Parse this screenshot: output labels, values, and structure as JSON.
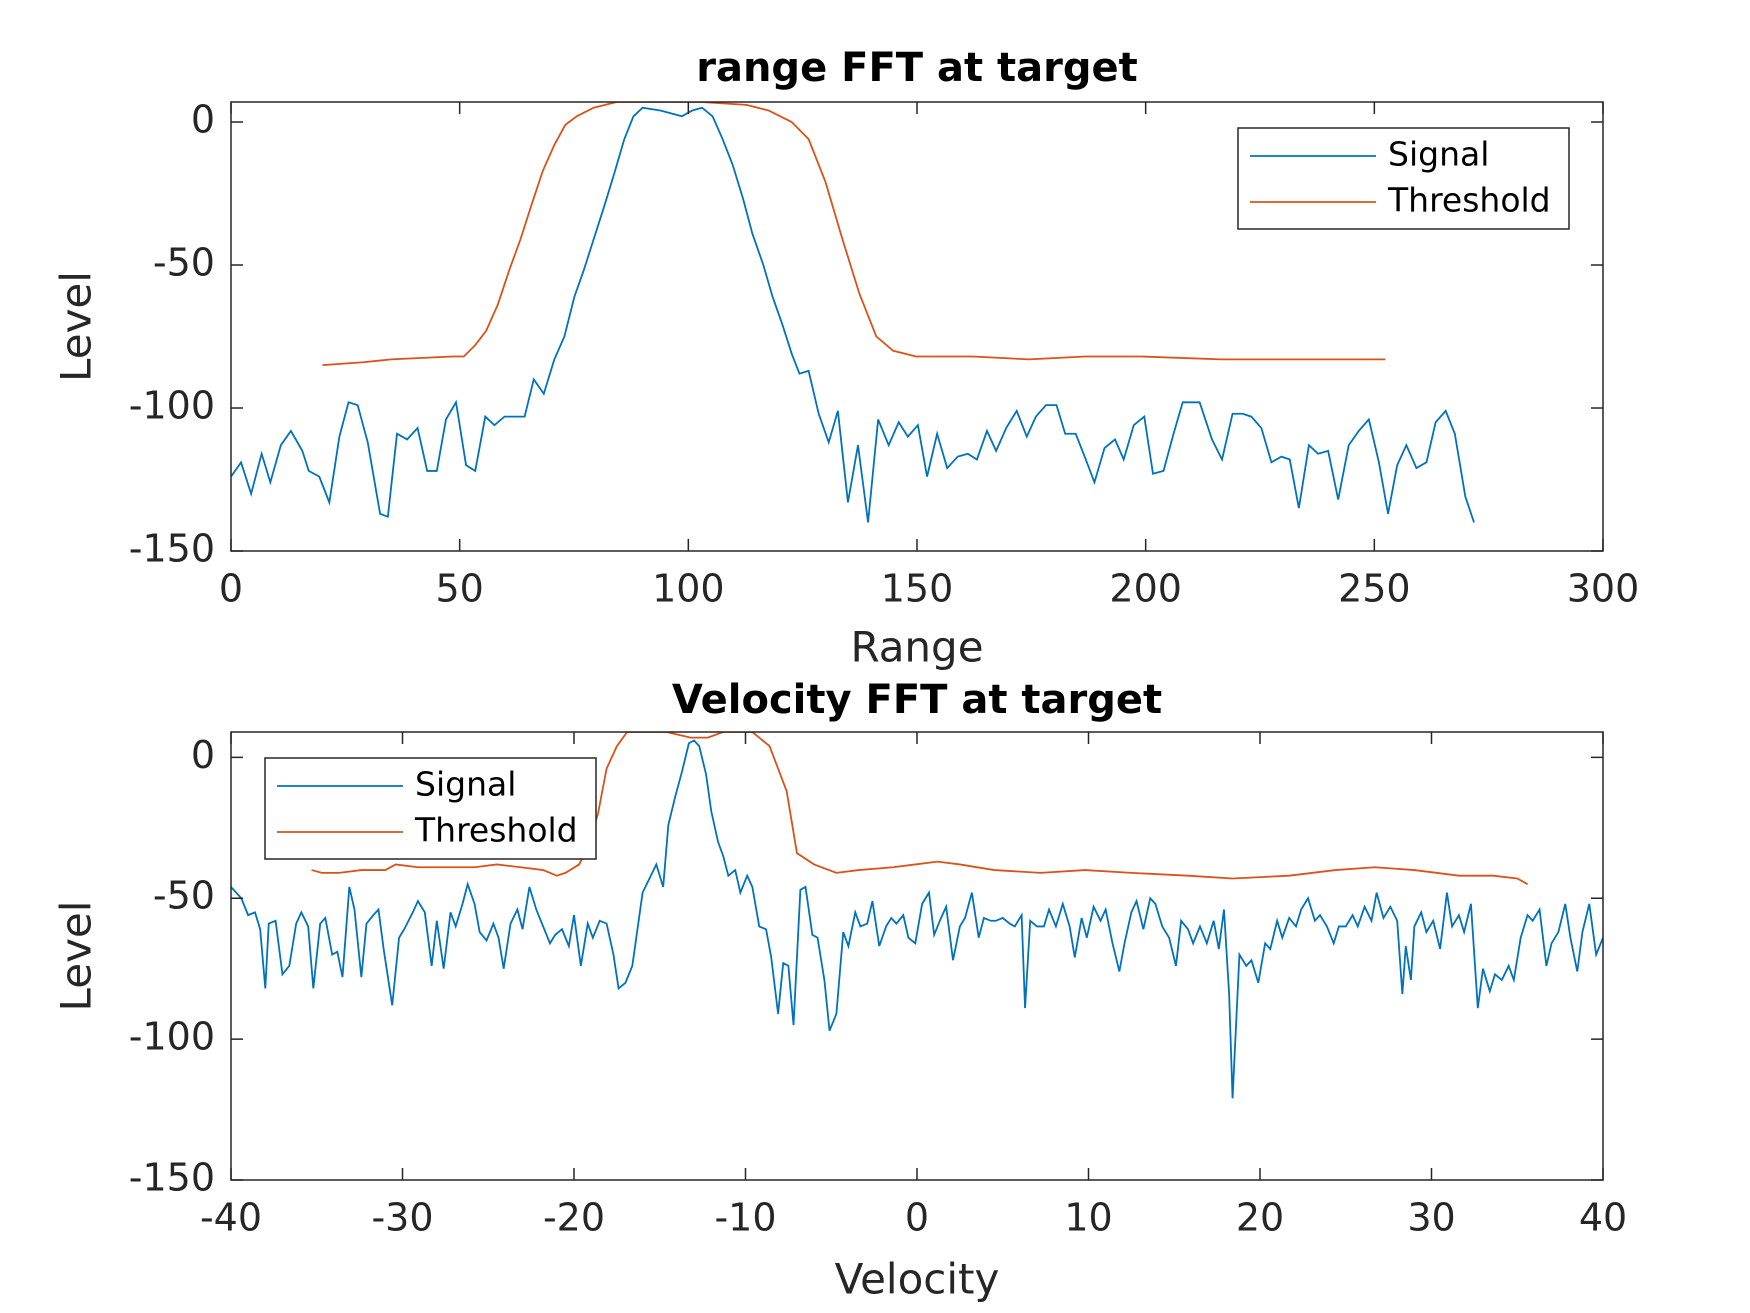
{
  "chart_data": [
    {
      "type": "line",
      "title": "range FFT at target",
      "xlabel": "Range",
      "ylabel": "Level",
      "xlim": [
        0,
        300
      ],
      "ylim": [
        -150,
        7
      ],
      "xticks": [
        0,
        50,
        100,
        150,
        200,
        250,
        300
      ],
      "yticks": [
        -150,
        -100,
        -50,
        0
      ],
      "legend": "top-right",
      "grid": false,
      "series": [
        {
          "name": "Signal",
          "color": "#0072BD",
          "x": [
            0,
            2.2,
            4.4,
            6.7,
            8.6,
            10.9,
            13.1,
            15.6,
            17,
            19.3,
            21.5,
            23.7,
            25.7,
            27.7,
            29.9,
            32.6,
            34.3,
            36.3,
            38.5,
            40.8,
            42.9,
            45,
            47,
            49.2,
            51.4,
            53.4,
            55.6,
            57.6,
            59.8,
            64.2,
            66.2,
            68.4,
            70.7,
            72.9,
            75.1,
            77.1,
            79.3,
            81.5,
            83.8,
            86,
            88,
            90,
            94,
            98.6,
            100.8,
            103,
            105.3,
            107.5,
            109.7,
            112,
            114,
            116.4,
            118.4,
            120.6,
            122.6,
            124.3,
            126.3,
            128.5,
            130.7,
            132.7,
            134.9,
            137.1,
            139.3,
            141.5,
            143.8,
            146,
            148,
            150.2,
            152.2,
            154.4,
            156.6,
            158.9,
            161.1,
            163.1,
            165.3,
            167.3,
            169.5,
            171.8,
            174,
            176,
            178.2,
            180.5,
            182.4,
            184.7,
            186.9,
            188.8,
            191,
            193.3,
            195.2,
            197.4,
            199.7,
            201.6,
            203.9,
            206.1,
            208.1,
            211.8,
            214.5,
            216.7,
            219,
            221.2,
            223.1,
            225.3,
            227.5,
            229.7,
            231.5,
            233.5,
            235.7,
            237.7,
            239.9,
            242.1,
            244.4,
            246.6,
            248.8,
            251,
            253,
            255,
            257,
            259.2,
            261.4,
            263.4,
            265.6,
            267.6,
            269.9,
            271.8
          ],
          "values": [
            -124,
            -119,
            -130,
            -116,
            -126,
            -113,
            -108,
            -115,
            -122,
            -124,
            -133,
            -110,
            -98,
            -99,
            -112,
            -137,
            -138,
            -109,
            -111,
            -107,
            -122,
            -122,
            -104,
            -98,
            -120,
            -122,
            -103,
            -106,
            -103,
            -103,
            -90,
            -95,
            -83,
            -75,
            -61,
            -52,
            -41,
            -30,
            -18,
            -6,
            2,
            5,
            4,
            2,
            4,
            5,
            2,
            -6,
            -15,
            -27,
            -39,
            -50,
            -61,
            -71,
            -81,
            -88,
            -87,
            -102,
            -112,
            -101,
            -133,
            -113,
            -140,
            -104,
            -113,
            -105,
            -110,
            -106,
            -124,
            -109,
            -121,
            -117,
            -116,
            -118,
            -108,
            -115,
            -107,
            -101,
            -110,
            -103,
            -99,
            -99,
            -109,
            -109,
            -118,
            -126,
            -114,
            -111,
            -118,
            -106,
            -103,
            -123,
            -122,
            -109,
            -98,
            -98,
            -111,
            -118,
            -102,
            -102,
            -103,
            -107,
            -119,
            -117,
            -118,
            -135,
            -113,
            -116,
            -115,
            -132,
            -113,
            -108,
            -104,
            -119,
            -137,
            -120,
            -113,
            -121,
            -119,
            -105,
            -101,
            -109,
            -131,
            -140
          ]
        },
        {
          "name": "Threshold",
          "color": "#D95319",
          "x": [
            20,
            28.9,
            35,
            48.4,
            50.9,
            53.4,
            55.8,
            58.3,
            60.8,
            63.3,
            65.7,
            68.2,
            70.7,
            73.1,
            75.6,
            79.3,
            84.3,
            93,
            102.8,
            112.7,
            117.6,
            122.6,
            126.3,
            130,
            133.7,
            137.4,
            141.1,
            144.8,
            149.8,
            162.2,
            174.5,
            186.8,
            193,
            199.3,
            216.5,
            236.3,
            252.4
          ],
          "values": [
            -85,
            -84,
            -83,
            -82,
            -82,
            -78,
            -73,
            -64,
            -52,
            -41,
            -29,
            -17,
            -8,
            -1,
            2,
            5,
            7,
            7,
            7,
            6,
            4,
            0,
            -6,
            -21,
            -41,
            -60,
            -75,
            -80,
            -82,
            -82,
            -83,
            -82,
            -82,
            -82,
            -83,
            -83,
            -83
          ]
        }
      ]
    },
    {
      "type": "line",
      "title": "Velocity FFT at target",
      "xlabel": "Velocity",
      "ylabel": "Level",
      "xlim": [
        -40,
        40
      ],
      "ylim": [
        -150,
        9
      ],
      "xticks": [
        -40,
        -30,
        -20,
        -10,
        0,
        10,
        20,
        30,
        40
      ],
      "yticks": [
        -150,
        -100,
        -50,
        0
      ],
      "legend": "top-left",
      "grid": false,
      "series": [
        {
          "name": "Signal",
          "color": "#0072BD",
          "x": [
            -40,
            -39.4,
            -39,
            -38.6,
            -38.3,
            -38,
            -37.8,
            -37.4,
            -37,
            -36.6,
            -36.2,
            -35.9,
            -35.5,
            -35.2,
            -34.8,
            -34.5,
            -34.1,
            -33.8,
            -33.5,
            -33.1,
            -32.8,
            -32.4,
            -32.1,
            -31.7,
            -31.4,
            -31.1,
            -30.6,
            -30.2,
            -29.9,
            -29.4,
            -29.1,
            -28.7,
            -28.3,
            -28,
            -27.6,
            -27.2,
            -26.9,
            -26.5,
            -26.2,
            -25.8,
            -25.5,
            -25.1,
            -24.7,
            -24.4,
            -24.1,
            -23.7,
            -23.3,
            -23,
            -22.6,
            -22.2,
            -21.8,
            -21.4,
            -21.1,
            -20.7,
            -20.3,
            -20,
            -19.6,
            -19.2,
            -18.9,
            -18.5,
            -18.1,
            -17.7,
            -17.4,
            -17,
            -16.6,
            -16.3,
            -16,
            -15.6,
            -15.2,
            -14.8,
            -14.5,
            -14.1,
            -13.7,
            -13.3,
            -13,
            -12.7,
            -12.3,
            -12,
            -11.6,
            -11.3,
            -11,
            -10.6,
            -10.3,
            -9.9,
            -9.6,
            -9.2,
            -8.8,
            -8.5,
            -8.1,
            -7.8,
            -7.5,
            -7.2,
            -6.8,
            -6.5,
            -6.1,
            -5.8,
            -5.4,
            -5.1,
            -4.7,
            -4.3,
            -4,
            -3.6,
            -3.3,
            -2.9,
            -2.6,
            -2.2,
            -1.8,
            -1.5,
            -1.2,
            -0.8,
            -0.5,
            -0.1,
            0.3,
            0.7,
            1,
            1.4,
            1.7,
            2.1,
            2.5,
            2.8,
            3.2,
            3.6,
            3.9,
            4.3,
            4.6,
            5,
            5.4,
            5.7,
            6.1,
            6.3,
            6.6,
            7,
            7.4,
            7.7,
            8.1,
            8.5,
            8.9,
            9.2,
            9.6,
            9.9,
            10.3,
            10.7,
            11,
            11.4,
            11.8,
            12.1,
            12.5,
            12.8,
            13.2,
            13.6,
            13.9,
            14.3,
            14.7,
            15.1,
            15.4,
            15.8,
            16.1,
            16.5,
            16.9,
            17.3,
            17.6,
            17.9,
            18.2,
            18.4,
            18.8,
            19.2,
            19.5,
            19.9,
            20.3,
            20.6,
            21,
            21.3,
            21.7,
            22.1,
            22.4,
            22.8,
            23.2,
            23.5,
            23.9,
            24.3,
            24.6,
            25,
            25.4,
            25.7,
            26.1,
            26.5,
            26.8,
            27.2,
            27.6,
            28,
            28.3,
            28.5,
            28.8,
            29,
            29.4,
            29.7,
            30.1,
            30.5,
            30.9,
            31.2,
            31.6,
            31.9,
            32.3,
            32.7,
            33,
            33.4,
            33.7,
            34.1,
            34.5,
            34.8,
            35.2,
            35.6,
            35.9,
            36.3,
            36.7,
            37,
            37.4,
            37.8,
            38.1,
            38.5,
            38.8,
            39.2,
            39.6,
            40
          ],
          "values": [
            -46,
            -50,
            -56,
            -55,
            -61,
            -82,
            -59,
            -58,
            -77,
            -74,
            -59,
            -55,
            -60,
            -82,
            -59,
            -57,
            -70,
            -69,
            -78,
            -46,
            -54,
            -78,
            -59,
            -56,
            -54,
            -68,
            -88,
            -64,
            -61,
            -55,
            -51,
            -55,
            -74,
            -58,
            -75,
            -55,
            -60,
            -52,
            -45,
            -52,
            -62,
            -65,
            -59,
            -64,
            -75,
            -59,
            -54,
            -61,
            -46,
            -54,
            -60,
            -66,
            -63,
            -61,
            -67,
            -56,
            -74,
            -59,
            -64,
            -58,
            -59,
            -70,
            -82,
            -80,
            -74,
            -61,
            -48,
            -43,
            -38,
            -46,
            -24,
            -14,
            -5,
            5,
            6,
            4,
            -6,
            -19,
            -30,
            -35,
            -42,
            -40,
            -48,
            -42,
            -46,
            -60,
            -61,
            -71,
            -91,
            -73,
            -74,
            -95,
            -47,
            -46,
            -63,
            -64,
            -79,
            -97,
            -91,
            -62,
            -67,
            -55,
            -60,
            -59,
            -51,
            -67,
            -60,
            -57,
            -59,
            -56,
            -64,
            -66,
            -52,
            -48,
            -63,
            -57,
            -53,
            -72,
            -60,
            -57,
            -48,
            -64,
            -57,
            -58,
            -58,
            -57,
            -59,
            -60,
            -56,
            -89,
            -58,
            -60,
            -60,
            -54,
            -60,
            -52,
            -60,
            -71,
            -57,
            -64,
            -53,
            -58,
            -54,
            -66,
            -76,
            -66,
            -55,
            -51,
            -61,
            -50,
            -52,
            -60,
            -64,
            -74,
            -58,
            -61,
            -66,
            -60,
            -66,
            -58,
            -68,
            -54,
            -84,
            -121,
            -70,
            -74,
            -72,
            -80,
            -66,
            -68,
            -58,
            -64,
            -57,
            -60,
            -54,
            -50,
            -58,
            -56,
            -60,
            -66,
            -60,
            -60,
            -56,
            -60,
            -53,
            -58,
            -48,
            -57,
            -53,
            -58,
            -84,
            -67,
            -79,
            -60,
            -55,
            -62,
            -58,
            -68,
            -48,
            -60,
            -56,
            -62,
            -52,
            -89,
            -75,
            -83,
            -77,
            -79,
            -74,
            -79,
            -64,
            -56,
            -58,
            -54,
            -74,
            -66,
            -62,
            -52,
            -64,
            -76,
            -62,
            -52,
            -70,
            -64
          ]
        },
        {
          "name": "Threshold",
          "color": "#D95319",
          "x": [
            -35.3,
            -34.7,
            -33.7,
            -32.4,
            -31,
            -30.4,
            -29.1,
            -27.1,
            -25.8,
            -24.5,
            -23.1,
            -21.8,
            -21,
            -20.5,
            -19.7,
            -19.2,
            -18.6,
            -18.1,
            -17.5,
            -16.9,
            -14.6,
            -13.2,
            -12.2,
            -11.3,
            -9.6,
            -8.6,
            -7.6,
            -7,
            -6,
            -4.7,
            -3.4,
            -1.4,
            -0.1,
            1.2,
            2.5,
            4.5,
            7.2,
            9.8,
            12.5,
            15.8,
            18.4,
            21.7,
            24.4,
            26.7,
            29,
            31.6,
            33.6,
            35,
            35.6
          ],
          "values": [
            -40,
            -41,
            -41,
            -40,
            -40,
            -38,
            -39,
            -39,
            -39,
            -38,
            -39,
            -40,
            -42,
            -41,
            -38,
            -32,
            -20,
            -4,
            4,
            9,
            9,
            7,
            7,
            9,
            9,
            4,
            -12,
            -34,
            -38,
            -41,
            -40,
            -39,
            -38,
            -37,
            -38,
            -40,
            -41,
            -40,
            -41,
            -42,
            -43,
            -42,
            -40,
            -39,
            -40,
            -42,
            -42,
            -43,
            -45
          ]
        }
      ]
    }
  ]
}
